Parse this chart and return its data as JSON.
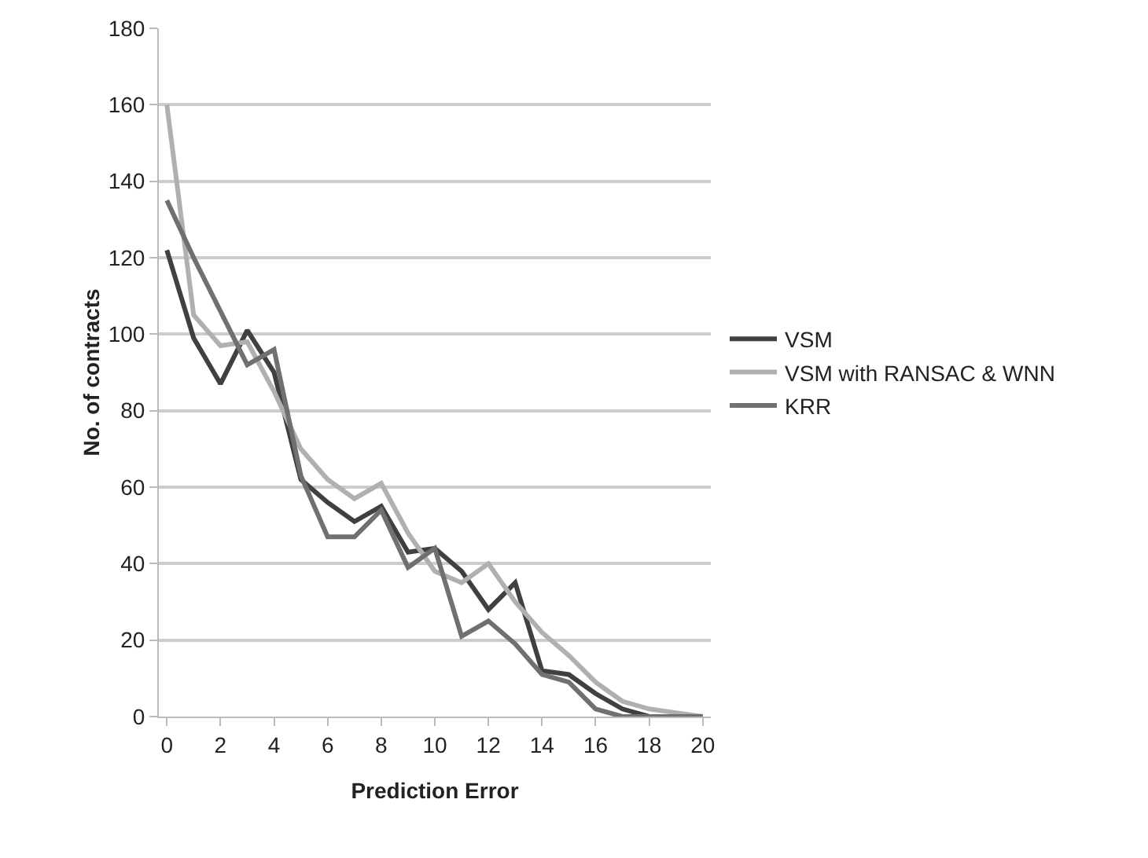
{
  "chart_data": {
    "type": "line",
    "xlabel": "Prediction Error",
    "ylabel": "No. of contracts",
    "x": [
      0,
      1,
      2,
      3,
      4,
      5,
      6,
      7,
      8,
      9,
      10,
      11,
      12,
      13,
      14,
      15,
      16,
      17,
      18,
      19,
      20
    ],
    "series": [
      {
        "name": "VSM",
        "color": "#404040",
        "values": [
          122,
          99,
          87,
          101,
          90,
          62,
          56,
          51,
          55,
          43,
          44,
          38,
          28,
          35,
          12,
          11,
          6,
          2,
          0,
          0,
          0
        ]
      },
      {
        "name": "VSM with RANSAC & WNN",
        "color": "#b0b0b0",
        "values": [
          160,
          105,
          97,
          98,
          85,
          70,
          62,
          57,
          61,
          48,
          38,
          35,
          40,
          30,
          22,
          16,
          9,
          4,
          2,
          1,
          0
        ]
      },
      {
        "name": "KRR",
        "color": "#707070",
        "values": [
          135,
          120,
          106,
          92,
          96,
          63,
          47,
          47,
          54,
          39,
          44,
          21,
          25,
          19,
          11,
          9,
          2,
          0,
          0,
          0,
          0
        ]
      }
    ],
    "xlim": [
      -0.3,
      20.3
    ],
    "xticks": [
      0,
      2,
      4,
      6,
      8,
      10,
      12,
      14,
      16,
      18,
      20
    ],
    "ylim": [
      0,
      180
    ],
    "yticks": [
      0,
      20,
      40,
      60,
      80,
      100,
      120,
      140,
      160,
      180
    ],
    "grid": "y",
    "legend": "right",
    "marker": "none",
    "line_style": "solid"
  }
}
